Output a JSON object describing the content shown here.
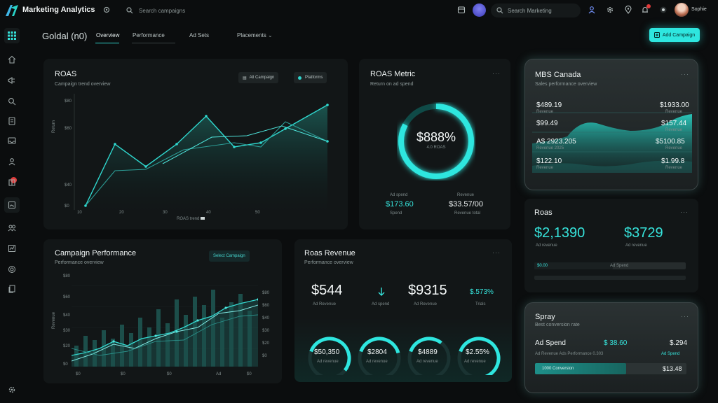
{
  "topbar": {
    "app_title": "Marketing Analytics",
    "search_placeholder": "Search campaigns",
    "search2_placeholder": "Search Marketing",
    "user_name": "Sophie"
  },
  "header": {
    "workspace": "Goldal (n0)",
    "tabs": [
      {
        "label": "Overview",
        "active": true
      },
      {
        "label": "Performance",
        "active": false
      },
      {
        "label": "Ad Sets",
        "active": false
      },
      {
        "label": "Placements",
        "active": false
      }
    ],
    "add_button": "Add Campaign"
  },
  "roas_card": {
    "title": "ROAS",
    "subtitle": "Campaign trend overview",
    "chip_campaign": "All Campaign",
    "chip_platforms": "Platforms",
    "y_ticks": [
      "$80",
      "$60",
      "$40",
      "$0"
    ],
    "x_ticks": [
      "10",
      "20",
      "30",
      "40",
      "50"
    ],
    "legend": "ROAS trend",
    "ylabel": "Return"
  },
  "roas_metric": {
    "title": "ROAS Metric",
    "subtitle": "Return on ad spend",
    "value": "$888%",
    "caption": "4.0 ROAS",
    "left_label": "Ad spend",
    "left_value": "$173.60",
    "left_caption": "Spend",
    "right_label": "Revenue",
    "right_value": "$33.57/00",
    "right_caption": "Revenue total"
  },
  "mbs_card": {
    "title": "MBS Canada",
    "subtitle": "Sales performance overview",
    "rows": [
      {
        "left": "$489.19",
        "left_caption": "Revenue",
        "right": "$1933.00",
        "right_caption": "Revenue"
      },
      {
        "left": "$99.49",
        "right": "$157.44",
        "right_caption": "Revenue"
      },
      {
        "left": "A$ 2923.205",
        "left_caption": "Revenue 2025",
        "right": "$5100.85",
        "right_caption": "Revenue"
      },
      {
        "left": "$122.10",
        "left_caption": "Revenue",
        "right": "$1.99.8",
        "right_caption": "Revenue"
      }
    ]
  },
  "campaign_perf": {
    "title": "Campaign Performance",
    "subtitle": "Performance overview",
    "chip": "Select Campaign",
    "y_ticks": [
      "$80",
      "$60",
      "$40",
      "$30",
      "$20",
      "$0"
    ],
    "right_ticks": [
      "$80",
      "$60",
      "$40",
      "$30",
      "$20",
      "$0"
    ],
    "x_ticks": [
      "$0",
      "$0",
      "$0",
      "Ad",
      "$0"
    ],
    "ylabel": "Revenue"
  },
  "revenue_card": {
    "title": "Roas Revenue",
    "subtitle": "Performance overview",
    "value_left": "$544",
    "caption_left": "Ad Revenue",
    "arrow_caption": "Ad spend",
    "value_mid": "$9315",
    "caption_mid": "Ad Revenue",
    "value_right": "$.573%",
    "caption_right": "Trials",
    "gauges": [
      {
        "value": "$50,350",
        "caption": "Ad revenue",
        "fill": 0.55
      },
      {
        "value": "$2804",
        "caption": "Ad revenue",
        "fill": 0.4
      },
      {
        "value": "$4889",
        "caption": "Ad revenue",
        "fill": 0.3
      },
      {
        "value": "$2.55%",
        "caption": "Ad revenue",
        "fill": 0.65
      }
    ]
  },
  "roas_small": {
    "title": "Roas",
    "value_left": "$2,1390",
    "caption_left": "Ad revenue",
    "value_right": "$3729",
    "caption_right": "Ad revenue",
    "bar_left_label": "$0.00",
    "bar_right_label": "Ad Spend",
    "bar_fill": 0.52
  },
  "spray_card": {
    "title": "Spray",
    "subtitle": "Best conversion rate",
    "row_label": "Ad Spend",
    "row_mid": "$ 38.60",
    "row_right": "$.294",
    "row_caption": "Ad Revenue Ads Performance 0.303",
    "row_caption_right": "Ad Spend",
    "bar_label": "1000 Conversion",
    "bar_value": "$13.48",
    "bar_fill": 0.6
  }
}
